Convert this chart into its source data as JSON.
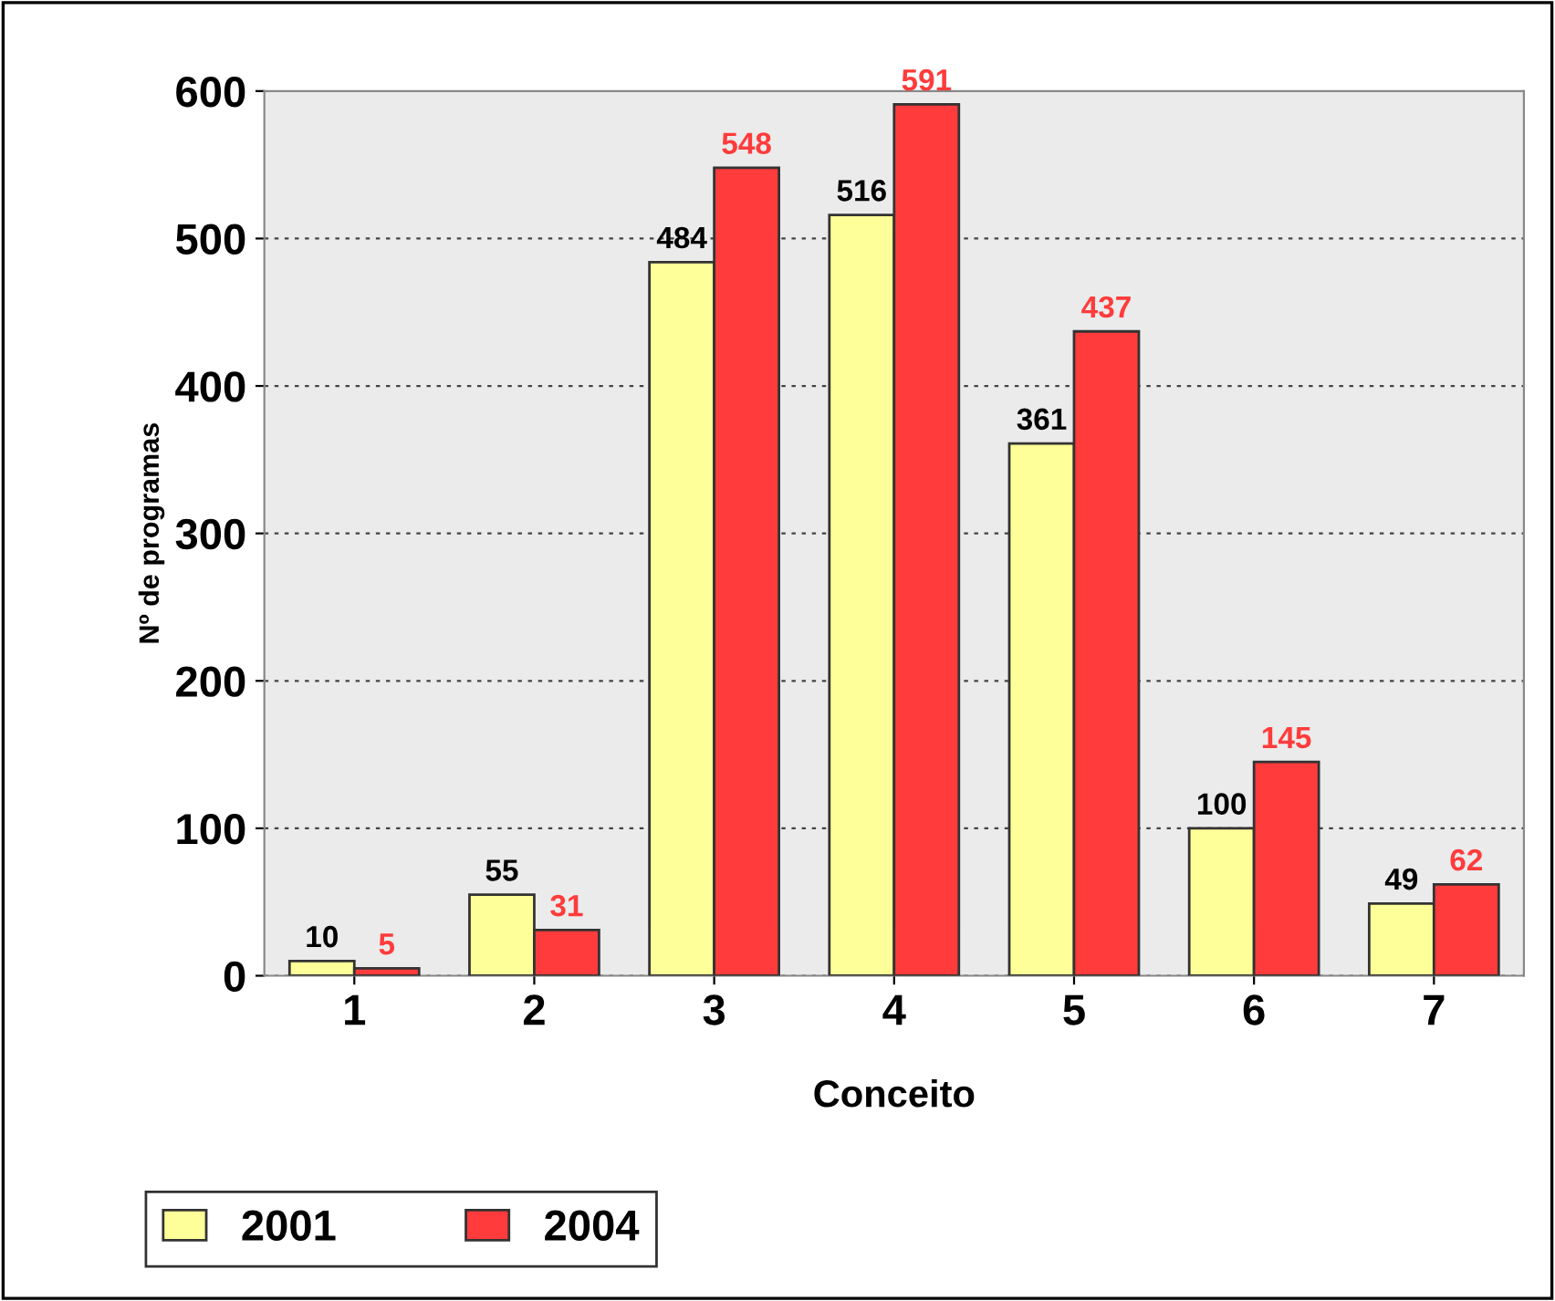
{
  "chart_data": {
    "type": "bar",
    "xlabel": "Conceito",
    "ylabel": "Nº de programas",
    "categories": [
      "1",
      "2",
      "3",
      "4",
      "5",
      "6",
      "7"
    ],
    "series": [
      {
        "name": "2001",
        "color": "#ffff99",
        "values": [
          10,
          55,
          484,
          516,
          361,
          100,
          49
        ]
      },
      {
        "name": "2004",
        "color": "#ff3b3b",
        "values": [
          5,
          31,
          548,
          591,
          437,
          145,
          62
        ]
      }
    ],
    "ylim": [
      0,
      600
    ],
    "yticks": [
      0,
      100,
      200,
      300,
      400,
      500,
      600
    ],
    "grid": "y",
    "legend": "bottom left",
    "data_labels": true
  }
}
